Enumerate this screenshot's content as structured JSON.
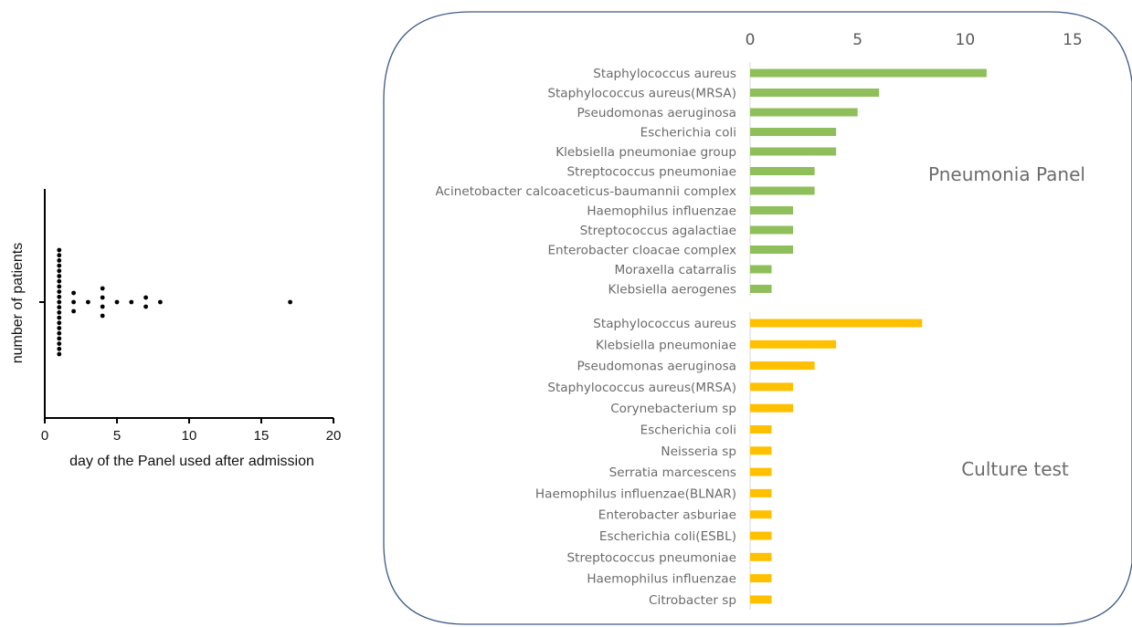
{
  "chart_data": [
    {
      "type": "scatter",
      "title": "",
      "xlabel": "day of the Panel used after admission",
      "ylabel": "number of patients",
      "xlim": [
        0,
        20
      ],
      "xticks": [
        "0",
        "5",
        "10",
        "15",
        "20"
      ],
      "grid": false,
      "columns": [
        {
          "x": 1,
          "count": 21
        },
        {
          "x": 2,
          "count": 3
        },
        {
          "x": 3,
          "count": 1
        },
        {
          "x": 4,
          "count": 4
        },
        {
          "x": 5,
          "count": 1
        },
        {
          "x": 6,
          "count": 1
        },
        {
          "x": 7,
          "count": 2
        },
        {
          "x": 8,
          "count": 1
        },
        {
          "x": 17,
          "count": 1
        }
      ]
    },
    {
      "type": "bar",
      "orientation": "horizontal",
      "xlim": [
        0,
        15
      ],
      "xticks": [
        "0",
        "5",
        "10",
        "15"
      ],
      "tick_position": "top",
      "grid": false,
      "groups": [
        {
          "label": "Pneumonia Panel",
          "color": "#8fbf5a",
          "categories": [
            "Staphylococcus aureus",
            "Staphylococcus aureus(MRSA)",
            "Pseudomonas aeruginosa",
            "Escherichia coli",
            "Klebsiella pneumoniae group",
            "Streptococcus pneumoniae",
            "Acinetobacter calcoaceticus-baumannii complex",
            "Haemophilus influenzae",
            "Streptococcus agalactiae",
            "Enterobacter cloacae complex",
            "Moraxella catarralis",
            "Klebsiella aerogenes"
          ],
          "values": [
            11,
            6,
            5,
            4,
            4,
            3,
            3,
            2,
            2,
            2,
            1,
            1
          ]
        },
        {
          "label": "Culture test",
          "color": "#ffc000",
          "categories": [
            "Staphylococcus aureus",
            "Klebsiella pneumoniae",
            "Pseudomonas aeruginosa",
            "Staphylococcus aureus(MRSA)",
            "Corynebacterium sp",
            "Escherichia coli",
            "Neisseria sp",
            "Serratia marcescens",
            "Haemophilus influenzae(BLNAR)",
            "Enterobacter asburiae",
            "Escherichia coli(ESBL)",
            "Streptococcus pneumoniae",
            "Haemophilus influenzae",
            "Citrobacter sp"
          ],
          "values": [
            8,
            4,
            3,
            2,
            2,
            1,
            1,
            1,
            1,
            1,
            1,
            1,
            1,
            1
          ]
        }
      ]
    }
  ]
}
